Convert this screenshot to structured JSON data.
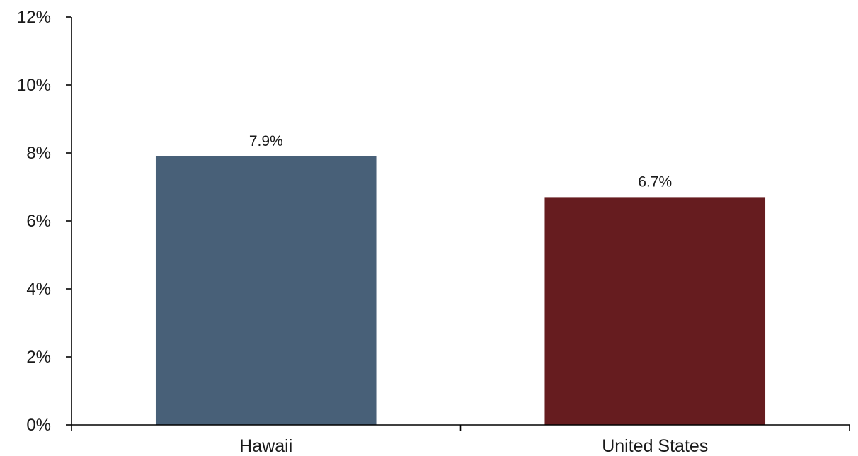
{
  "chart_data": {
    "type": "bar",
    "title": "",
    "xlabel": "",
    "ylabel": "",
    "categories": [
      "Hawaii",
      "United States"
    ],
    "values": [
      7.9,
      6.7
    ],
    "value_labels": [
      "7.9%",
      "6.7%"
    ],
    "colors": [
      "#486078",
      "#661c1f"
    ],
    "ylim": [
      0,
      12
    ],
    "yticks": [
      0,
      2,
      4,
      6,
      8,
      10,
      12
    ],
    "ytick_labels": [
      "0%",
      "2%",
      "4%",
      "6%",
      "8%",
      "10%",
      "12%"
    ],
    "grid": false,
    "legend": false
  }
}
